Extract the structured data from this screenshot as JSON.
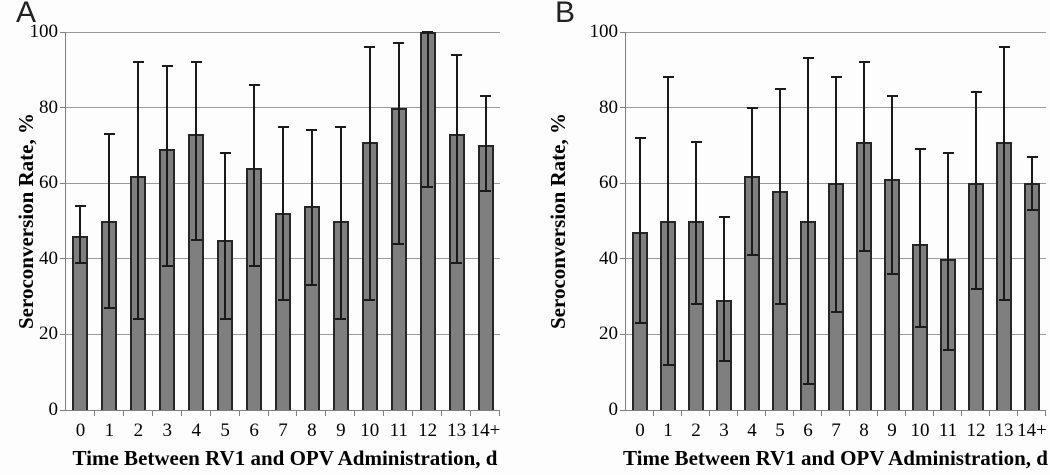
{
  "figure": {
    "background": "#fdfdfd"
  },
  "colors": {
    "bar_fill": "#7f7f7f",
    "bar_border": "#262626",
    "gridline": "#9b9b9b",
    "axis": "#808080",
    "error_bar": "#1a1a1a",
    "text": "#000000",
    "panel_label_text": "#222222"
  },
  "chart_data": [
    {
      "panel_label": "A",
      "type": "bar",
      "title": "",
      "xlabel": "Time Between RV1 and OPV Administration, d",
      "ylabel": "Seroconversion Rate, %",
      "ylim": [
        0,
        100
      ],
      "yticks": [
        0,
        20,
        40,
        60,
        80,
        100
      ],
      "grid": "horizontal",
      "legend": "none",
      "categories": [
        "0",
        "1",
        "2",
        "3",
        "4",
        "5",
        "6",
        "7",
        "8",
        "9",
        "10",
        "11",
        "12",
        "13",
        "14+"
      ],
      "values": [
        46,
        50,
        62,
        69,
        73,
        45,
        64,
        52,
        54,
        50,
        71,
        80,
        100,
        73,
        70
      ],
      "error_low": [
        39,
        27,
        24,
        38,
        45,
        24,
        38,
        29,
        33,
        24,
        29,
        44,
        59,
        39,
        58
      ],
      "error_high": [
        54,
        73,
        92,
        91,
        92,
        68,
        86,
        75,
        74,
        75,
        96,
        97,
        100,
        94,
        83
      ]
    },
    {
      "panel_label": "B",
      "type": "bar",
      "title": "",
      "xlabel": "Time Between RV1 and OPV Administration, d",
      "ylabel": "Seroconversion Rate, %",
      "ylim": [
        0,
        100
      ],
      "yticks": [
        0,
        20,
        40,
        60,
        80,
        100
      ],
      "grid": "horizontal",
      "legend": "none",
      "categories": [
        "0",
        "1",
        "2",
        "3",
        "4",
        "5",
        "6",
        "7",
        "8",
        "9",
        "10",
        "11",
        "12",
        "13",
        "14+"
      ],
      "values": [
        47,
        50,
        50,
        29,
        62,
        58,
        50,
        60,
        71,
        61,
        44,
        40,
        60,
        71,
        60
      ],
      "error_low": [
        23,
        12,
        28,
        13,
        41,
        28,
        7,
        26,
        42,
        36,
        22,
        16,
        32,
        29,
        53
      ],
      "error_high": [
        72,
        88,
        71,
        51,
        80,
        85,
        93,
        88,
        92,
        83,
        69,
        68,
        84,
        96,
        67
      ]
    }
  ]
}
